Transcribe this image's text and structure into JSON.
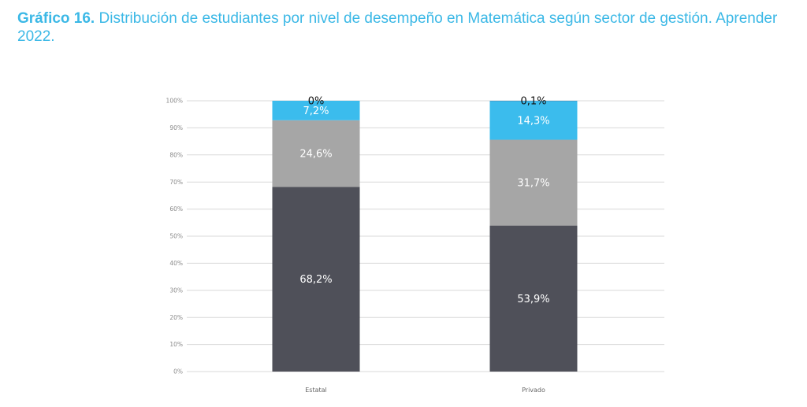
{
  "header": {
    "title_lead": "Gráfico 16.",
    "title_rest": " Distribución de estudiantes por nivel de desempeño en Matemática según sector de gestión. Aprender 2022."
  },
  "colors": {
    "title": "#3bb8e6",
    "gridline": "#d9d9d9",
    "label_dark_text": "#111111",
    "label_light_text": "#ffffff"
  },
  "chart_data": {
    "type": "bar",
    "stacked": true,
    "title": "Gráfico 16. Distribución de estudiantes por nivel de desempeño en Matemática según sector de gestión. Aprender 2022.",
    "xlabel": "",
    "ylabel": "",
    "ylim": [
      0,
      100
    ],
    "grid": true,
    "legend": "none",
    "yticks": [
      "0%",
      "10%",
      "20%",
      "30%",
      "40%",
      "50%",
      "60%",
      "70%",
      "80%",
      "90%",
      "100%"
    ],
    "categories": [
      "Estatal",
      "Privado"
    ],
    "series": [
      {
        "values": [
          68.2,
          53.9
        ],
        "labels": [
          "68,2%",
          "53,9%"
        ],
        "color": "#4f5059",
        "label_color": "#ffffff"
      },
      {
        "values": [
          24.6,
          31.7
        ],
        "labels": [
          "24,6%",
          "31,7%"
        ],
        "color": "#a6a6a6",
        "label_color": "#ffffff"
      },
      {
        "values": [
          7.2,
          14.3
        ],
        "labels": [
          "7,2%",
          "14,3%"
        ],
        "color": "#3bbced",
        "label_color": "#ffffff"
      },
      {
        "values": [
          0,
          0.1
        ],
        "labels": [
          "0%",
          "0,1%"
        ],
        "color": "#1f6fa8",
        "label_color": "#111111"
      }
    ]
  }
}
